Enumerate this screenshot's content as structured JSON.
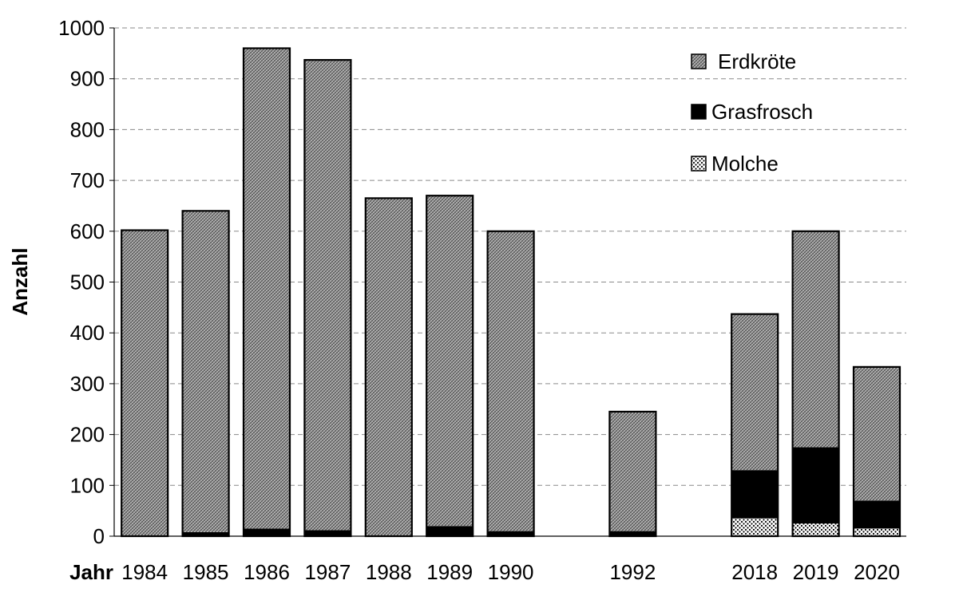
{
  "chart_data": {
    "type": "bar",
    "stacked": true,
    "title": "",
    "xlabel": "Jahr",
    "ylabel": "Anzahl",
    "ylim": [
      0,
      1000
    ],
    "yticks": [
      0,
      100,
      200,
      300,
      400,
      500,
      600,
      700,
      800,
      900,
      1000
    ],
    "grid": true,
    "legend_position": "top-right",
    "categories": [
      "1984",
      "1985",
      "1986",
      "1987",
      "1988",
      "1989",
      "1990",
      "1992",
      "2018",
      "2019",
      "2020"
    ],
    "series": [
      {
        "name": "Molche",
        "pattern": "dots",
        "values": [
          0,
          0,
          0,
          0,
          0,
          0,
          0,
          0,
          35,
          25,
          15
        ]
      },
      {
        "name": "Grasfrosch",
        "pattern": "solid",
        "color": "#000000",
        "values": [
          0,
          8,
          15,
          12,
          0,
          20,
          10,
          10,
          95,
          150,
          55
        ]
      },
      {
        "name": "Erdkröte",
        "pattern": "crosshatch",
        "values": [
          602,
          632,
          945,
          925,
          665,
          650,
          590,
          235,
          307,
          425,
          263
        ]
      }
    ],
    "legend_order": [
      "Erdkröte",
      "Grasfrosch",
      "Molche"
    ]
  }
}
